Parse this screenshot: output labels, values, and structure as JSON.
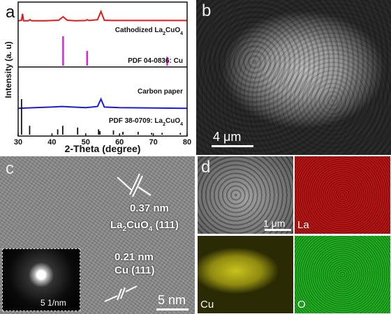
{
  "panel_a": {
    "label": "a",
    "ylabel": "Intensity (a. u)",
    "xlabel": "2-Theta (degree)",
    "traces": [
      {
        "name": "Cathodized La2CuO4",
        "color": "#e31a1c"
      },
      {
        "name": "PDF 04-0836: Cu",
        "color": "#e020e0"
      },
      {
        "name": "Carbon paper",
        "color": "#1a1ae3"
      },
      {
        "name": "PDF 38-0709: La2CuO4",
        "color": "#111111"
      }
    ]
  },
  "panel_b": {
    "label": "b",
    "scale": "4 μm"
  },
  "panel_c": {
    "label": "c",
    "spacing1": "0.37 nm",
    "plane1": "La2CuO4 (111)",
    "spacing2": "0.21 nm",
    "plane2": "Cu (111)",
    "scale": "5 nm",
    "inset_scale": "5 1/nm"
  },
  "panel_d": {
    "label": "d",
    "scale": "1 μm",
    "elements": [
      "La",
      "Cu",
      "O"
    ]
  },
  "chart_data": {
    "type": "line",
    "xlabel": "2-Theta (degree)",
    "ylabel": "Intensity (a. u)",
    "xlim": [
      30,
      80
    ],
    "xticks": [
      30,
      40,
      50,
      60,
      70,
      80
    ],
    "series": [
      {
        "name": "Cathodized La2CuO4",
        "color": "#e31a1c",
        "x": [
          30,
          31,
          31.3,
          31.6,
          33,
          33.5,
          34,
          38,
          42,
          43.3,
          44.5,
          47,
          50,
          50.4,
          51,
          53.5,
          54.5,
          55.5,
          58,
          62,
          65,
          70,
          74,
          80
        ],
        "y": [
          0.74,
          0.75,
          0.86,
          0.74,
          0.74,
          0.76,
          0.74,
          0.74,
          0.75,
          0.81,
          0.75,
          0.74,
          0.745,
          0.76,
          0.745,
          0.76,
          0.9,
          0.75,
          0.745,
          0.745,
          0.745,
          0.745,
          0.745,
          0.745
        ]
      },
      {
        "name": "PDF 04-0836: Cu",
        "color": "#e020e0",
        "type": "sticks",
        "x": [
          43.3,
          50.4,
          74.1
        ],
        "y": [
          1.0,
          0.5,
          0.3
        ]
      },
      {
        "name": "Carbon paper",
        "color": "#1a1ae3",
        "x": [
          30,
          35,
          40,
          43,
          46,
          50,
          53.5,
          54.5,
          55.5,
          60,
          70,
          80
        ],
        "y": [
          0.35,
          0.36,
          0.37,
          0.38,
          0.37,
          0.36,
          0.38,
          0.5,
          0.37,
          0.36,
          0.355,
          0.35
        ]
      },
      {
        "name": "PDF 38-0709: La2CuO4",
        "color": "#111111",
        "type": "sticks",
        "x": [
          31.0,
          33.4,
          41.7,
          43.2,
          47.6,
          53.8,
          54.2,
          58.2,
          61.0,
          65.5,
          69.5,
          72.6,
          78.0
        ],
        "y": [
          1.0,
          0.25,
          0.15,
          0.25,
          0.2,
          0.15,
          0.1,
          0.12,
          0.08,
          0.08,
          0.05,
          0.05,
          0.05
        ]
      }
    ]
  }
}
